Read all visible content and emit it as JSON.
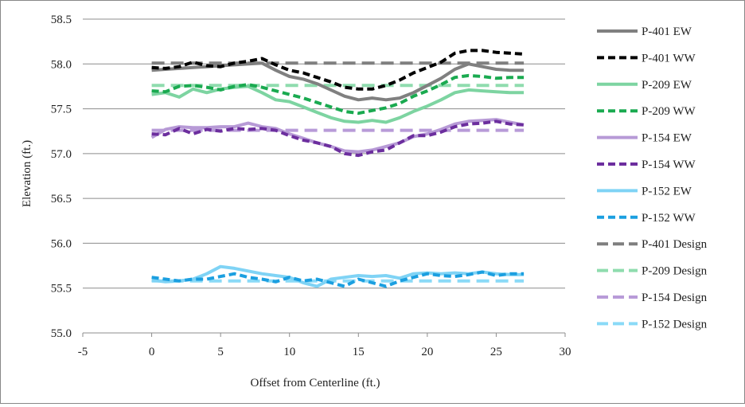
{
  "chart_data": {
    "type": "line",
    "title": "",
    "xlabel": "Offset from Centerline (ft.)",
    "ylabel": "Elevation (ft.)",
    "xlim": [
      -5,
      30
    ],
    "ylim": [
      55.0,
      58.5
    ],
    "xticks": [
      -5,
      0,
      5,
      10,
      15,
      20,
      25,
      30
    ],
    "yticks": [
      55.0,
      55.5,
      56.0,
      56.5,
      57.0,
      57.5,
      58.0,
      58.5
    ],
    "xtick_labels": [
      "-5",
      "0",
      "5",
      "10",
      "15",
      "20",
      "25",
      "30"
    ],
    "ytick_labels": [
      "55.0",
      "55.5",
      "56.0",
      "56.5",
      "57.0",
      "57.5",
      "58.0",
      "58.5"
    ],
    "grid": "horizontal",
    "legend_position": "right",
    "series": [
      {
        "name": "P-401 EW",
        "color": "#808080",
        "dash": "solid",
        "x": [
          0,
          1,
          2,
          3,
          4,
          5,
          6,
          7,
          8,
          9,
          10,
          11,
          12,
          13,
          14,
          15,
          16,
          17,
          18,
          19,
          20,
          21,
          22,
          23,
          24,
          25,
          26,
          27
        ],
        "y": [
          57.93,
          57.94,
          57.95,
          57.96,
          57.97,
          57.98,
          57.99,
          58.0,
          58.01,
          57.93,
          57.86,
          57.83,
          57.78,
          57.71,
          57.64,
          57.6,
          57.62,
          57.6,
          57.62,
          57.68,
          57.76,
          57.84,
          57.94,
          58.0,
          57.97,
          57.94,
          57.93,
          57.93
        ]
      },
      {
        "name": "P-401 WW",
        "color": "#000000",
        "dash": "dashed",
        "x": [
          0,
          1,
          2,
          3,
          4,
          5,
          6,
          7,
          8,
          9,
          10,
          11,
          12,
          13,
          14,
          15,
          16,
          17,
          18,
          19,
          20,
          21,
          22,
          23,
          24,
          25,
          26,
          27
        ],
        "y": [
          57.96,
          57.95,
          57.97,
          58.02,
          57.98,
          57.97,
          58.01,
          58.03,
          58.06,
          57.99,
          57.93,
          57.9,
          57.85,
          57.8,
          57.74,
          57.72,
          57.72,
          57.76,
          57.82,
          57.9,
          57.96,
          58.02,
          58.12,
          58.15,
          58.15,
          58.13,
          58.12,
          58.11
        ]
      },
      {
        "name": "P-209 EW",
        "color": "#7DD4A1",
        "dash": "solid",
        "x": [
          0,
          1,
          2,
          3,
          4,
          5,
          6,
          7,
          8,
          9,
          10,
          11,
          12,
          13,
          14,
          15,
          16,
          17,
          18,
          19,
          20,
          21,
          22,
          23,
          24,
          25,
          26,
          27
        ],
        "y": [
          57.66,
          57.68,
          57.63,
          57.72,
          57.68,
          57.72,
          57.74,
          57.75,
          57.68,
          57.6,
          57.58,
          57.52,
          57.46,
          57.4,
          57.36,
          57.35,
          57.37,
          57.35,
          57.4,
          57.47,
          57.53,
          57.6,
          57.68,
          57.71,
          57.7,
          57.69,
          57.68,
          57.68
        ]
      },
      {
        "name": "P-209 WW",
        "color": "#1AAA50",
        "dash": "dashed",
        "x": [
          0,
          1,
          2,
          3,
          4,
          5,
          6,
          7,
          8,
          9,
          10,
          11,
          12,
          13,
          14,
          15,
          16,
          17,
          18,
          19,
          20,
          21,
          22,
          23,
          24,
          25,
          26,
          27
        ],
        "y": [
          57.7,
          57.69,
          57.75,
          57.76,
          57.74,
          57.71,
          57.75,
          57.77,
          57.74,
          57.7,
          57.66,
          57.62,
          57.57,
          57.52,
          57.47,
          57.45,
          57.48,
          57.51,
          57.56,
          57.64,
          57.7,
          57.77,
          57.85,
          57.87,
          57.86,
          57.84,
          57.85,
          57.85
        ]
      },
      {
        "name": "P-154 EW",
        "color": "#B79AD6",
        "dash": "solid",
        "x": [
          0,
          1,
          2,
          3,
          4,
          5,
          6,
          7,
          8,
          9,
          10,
          11,
          12,
          13,
          14,
          15,
          16,
          17,
          18,
          19,
          20,
          21,
          22,
          23,
          24,
          25,
          26,
          27
        ],
        "y": [
          57.18,
          57.27,
          57.3,
          57.29,
          57.29,
          57.3,
          57.3,
          57.34,
          57.3,
          57.28,
          57.22,
          57.17,
          57.12,
          57.08,
          57.03,
          57.02,
          57.04,
          57.08,
          57.12,
          57.19,
          57.22,
          57.27,
          57.33,
          57.36,
          57.37,
          57.38,
          57.35,
          57.32
        ]
      },
      {
        "name": "P-154 WW",
        "color": "#6C2E9E",
        "dash": "dashed",
        "x": [
          0,
          1,
          2,
          3,
          4,
          5,
          6,
          7,
          8,
          9,
          10,
          11,
          12,
          13,
          14,
          15,
          16,
          17,
          18,
          19,
          20,
          21,
          22,
          23,
          24,
          25,
          26,
          27
        ],
        "y": [
          57.22,
          57.21,
          57.28,
          57.22,
          57.27,
          57.25,
          57.28,
          57.27,
          57.28,
          57.26,
          57.2,
          57.15,
          57.12,
          57.08,
          57.0,
          56.98,
          57.02,
          57.04,
          57.12,
          57.2,
          57.2,
          57.24,
          57.3,
          57.33,
          57.34,
          57.36,
          57.33,
          57.32
        ]
      },
      {
        "name": "P-152 EW",
        "color": "#7FD3F5",
        "dash": "solid",
        "x": [
          0,
          1,
          2,
          3,
          4,
          5,
          6,
          7,
          8,
          9,
          10,
          11,
          12,
          13,
          14,
          15,
          16,
          17,
          18,
          19,
          20,
          21,
          22,
          23,
          24,
          25,
          26,
          27
        ],
        "y": [
          55.59,
          55.57,
          55.58,
          55.6,
          55.66,
          55.74,
          55.72,
          55.69,
          55.66,
          55.64,
          55.62,
          55.56,
          55.52,
          55.6,
          55.62,
          55.64,
          55.63,
          55.64,
          55.61,
          55.66,
          55.67,
          55.66,
          55.67,
          55.66,
          55.68,
          55.66,
          55.65,
          55.65
        ]
      },
      {
        "name": "P-152 WW",
        "color": "#1B9FE0",
        "dash": "dashed",
        "x": [
          0,
          1,
          2,
          3,
          4,
          5,
          6,
          7,
          8,
          9,
          10,
          11,
          12,
          13,
          14,
          15,
          16,
          17,
          18,
          19,
          20,
          21,
          22,
          23,
          24,
          25,
          26,
          27
        ],
        "y": [
          55.62,
          55.6,
          55.58,
          55.6,
          55.6,
          55.63,
          55.66,
          55.62,
          55.6,
          55.57,
          55.62,
          55.58,
          55.6,
          55.56,
          55.52,
          55.6,
          55.56,
          55.52,
          55.58,
          55.62,
          55.66,
          55.64,
          55.63,
          55.65,
          55.68,
          55.64,
          55.66,
          55.66
        ]
      },
      {
        "name": "P-401 Design",
        "color": "#7F7F7F",
        "dash": "longdash",
        "x": [
          0,
          27
        ],
        "y": [
          58.01,
          58.01
        ]
      },
      {
        "name": "P-209 Design",
        "color": "#8FDCAE",
        "dash": "longdash",
        "x": [
          0,
          27
        ],
        "y": [
          57.76,
          57.76
        ]
      },
      {
        "name": "P-154 Design",
        "color": "#B89BD8",
        "dash": "longdash",
        "x": [
          0,
          27
        ],
        "y": [
          57.26,
          57.26
        ]
      },
      {
        "name": "P-152 Design",
        "color": "#8ADAF7",
        "dash": "longdash",
        "x": [
          0,
          27
        ],
        "y": [
          55.58,
          55.58
        ]
      }
    ]
  }
}
